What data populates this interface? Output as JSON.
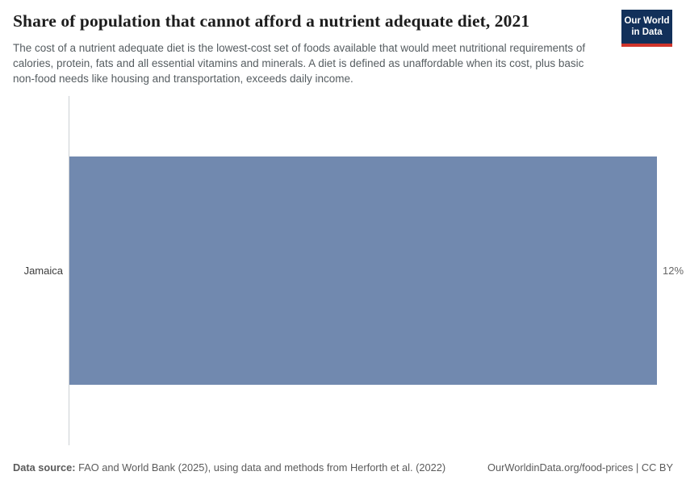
{
  "header": {
    "title": "Share of population that cannot afford a nutrient adequate diet, 2021",
    "logo": {
      "line1": "Our World",
      "line2": "in Data",
      "bg_color": "#12305a",
      "stripe_color": "#d0342b"
    }
  },
  "subtitle": "The cost of a nutrient adequate diet is the lowest-cost set of foods available that would meet nutritional requirements of calories, protein, fats and all essential vitamins and minerals. A diet is defined as unaffordable when its cost, plus basic non-food needs like housing and transportation, exceeds daily income.",
  "chart_data": {
    "type": "bar",
    "orientation": "horizontal",
    "title": "Share of population that cannot afford a nutrient adequate diet, 2021",
    "categories": [
      "Jamaica"
    ],
    "values": [
      12
    ],
    "unit": "%",
    "value_labels": [
      "12%"
    ],
    "axis_max": 12,
    "grid": false,
    "legend": "none",
    "bar_color": "#7189af",
    "axis_line_color": "#ccd0d4",
    "xlabel": "",
    "ylabel": ""
  },
  "footer": {
    "source_label": "Data source:",
    "source_text": " FAO and World Bank (2025), using data and methods from Herforth et al. (2022)",
    "link_text": "OurWorldinData.org/food-prices",
    "separator": " | ",
    "license_text": "CC BY"
  }
}
